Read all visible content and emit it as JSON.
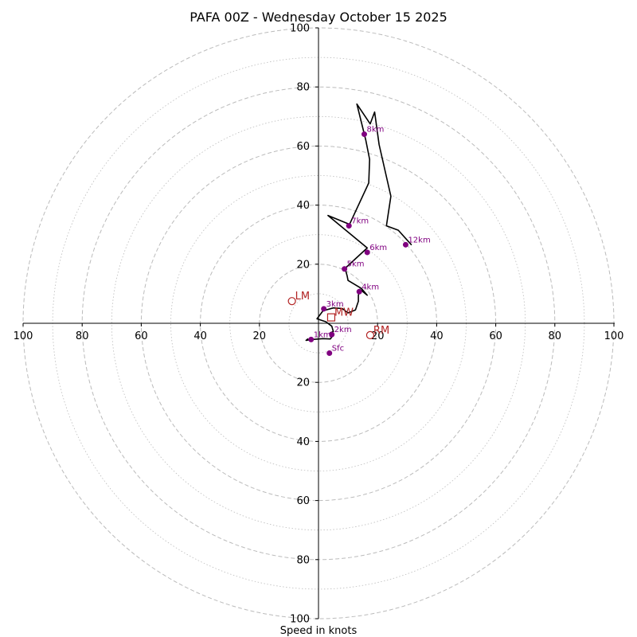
{
  "chart_data": {
    "type": "hodograph",
    "title": "PAFA 00Z - Wednesday October 15 2025",
    "xlabel": "Speed in knots",
    "range": 100,
    "ring_step": 10,
    "axis_tick_labels": {
      "x": [
        "100",
        "80",
        "60",
        "40",
        "20",
        "20",
        "40",
        "60",
        "80",
        "100"
      ],
      "y": [
        "100",
        "80",
        "60",
        "40",
        "20",
        "20",
        "40",
        "60",
        "80",
        "100"
      ]
    },
    "hodograph_trace": [
      {
        "u": -3.5,
        "v": -5.2
      },
      {
        "u": -4.2,
        "v": -5.8
      },
      {
        "u": -2.5,
        "v": -5.5
      },
      {
        "u": 1.5,
        "v": -5.2
      },
      {
        "u": 4.0,
        "v": -5.3
      },
      {
        "u": 5.0,
        "v": -4.0
      },
      {
        "u": 4.0,
        "v": -3.2
      },
      {
        "u": 5.0,
        "v": -2.8
      },
      {
        "u": 4.5,
        "v": -1.0
      },
      {
        "u": 2.5,
        "v": 0.5
      },
      {
        "u": -0.5,
        "v": 1.5
      },
      {
        "u": 1.5,
        "v": 4.2
      },
      {
        "u": 5.0,
        "v": 5.2
      },
      {
        "u": 8.0,
        "v": 5.0
      },
      {
        "u": 10.0,
        "v": 3.5
      },
      {
        "u": 12.5,
        "v": 4.5
      },
      {
        "u": 13.5,
        "v": 7.5
      },
      {
        "u": 13.5,
        "v": 9.5
      },
      {
        "u": 14.0,
        "v": 11.5
      },
      {
        "u": 16.5,
        "v": 9.5
      },
      {
        "u": 14.5,
        "v": 11.8
      },
      {
        "u": 10.0,
        "v": 14.5
      },
      {
        "u": 9.7,
        "v": 16.0
      },
      {
        "u": 9.0,
        "v": 18.6
      },
      {
        "u": 16.5,
        "v": 25.5
      },
      {
        "u": 3.2,
        "v": 36.5
      },
      {
        "u": 10.5,
        "v": 33.5
      },
      {
        "u": 17.0,
        "v": 47.5
      },
      {
        "u": 17.3,
        "v": 55.5
      },
      {
        "u": 16.0,
        "v": 62.0
      },
      {
        "u": 13.0,
        "v": 74.2
      },
      {
        "u": 17.5,
        "v": 67.5
      },
      {
        "u": 19.0,
        "v": 71.5
      },
      {
        "u": 20.5,
        "v": 60.5
      },
      {
        "u": 24.5,
        "v": 43.0
      },
      {
        "u": 23.0,
        "v": 33.0
      },
      {
        "u": 27.0,
        "v": 31.5
      },
      {
        "u": 31.5,
        "v": 26.5
      }
    ],
    "height_markers": [
      {
        "label": "Sfc",
        "u": 3.7,
        "v": -10.1
      },
      {
        "label": "1km",
        "u": -2.5,
        "v": -5.5
      },
      {
        "label": "2km",
        "u": 4.5,
        "v": -3.8
      },
      {
        "label": "3km",
        "u": 1.8,
        "v": 4.9
      },
      {
        "label": "4km",
        "u": 13.8,
        "v": 10.7
      },
      {
        "label": "5km",
        "u": 8.8,
        "v": 18.4
      },
      {
        "label": "6km",
        "u": 16.5,
        "v": 24.0
      },
      {
        "label": "7km",
        "u": 10.3,
        "v": 33.0
      },
      {
        "label": "8km",
        "u": 15.5,
        "v": 64.0
      },
      {
        "label": "12km",
        "u": 29.5,
        "v": 26.6
      }
    ],
    "storm_motion": [
      {
        "label": "LM",
        "u": -9.0,
        "v": 7.5,
        "shape": "circle"
      },
      {
        "label": "MW",
        "u": 4.3,
        "v": 2.0,
        "shape": "square"
      },
      {
        "label": "RM",
        "u": 17.5,
        "v": -4.0,
        "shape": "circle"
      }
    ],
    "colors": {
      "trace": "#000000",
      "markers": "#800080",
      "storm_motion": "#b22222",
      "grid": "#bbbbbb"
    }
  }
}
